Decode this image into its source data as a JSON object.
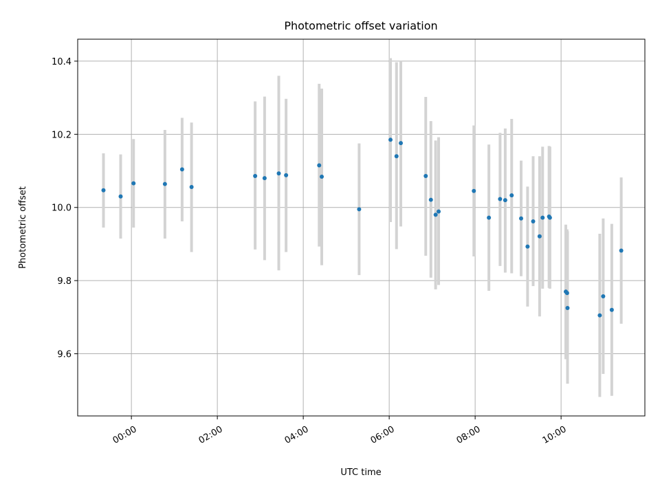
{
  "chart_data": {
    "type": "scatter",
    "title": "Photometric offset variation",
    "xlabel": "UTC time",
    "ylabel": "Photometric offset",
    "x_unit": "hours",
    "xlim": [
      -1.25,
      11.95
    ],
    "ylim": [
      9.43,
      10.46
    ],
    "xticks": [
      {
        "value": 0,
        "label": "00:00"
      },
      {
        "value": 2,
        "label": "02:00"
      },
      {
        "value": 4,
        "label": "04:00"
      },
      {
        "value": 6,
        "label": "06:00"
      },
      {
        "value": 8,
        "label": "08:00"
      },
      {
        "value": 10,
        "label": "10:00"
      }
    ],
    "yticks": [
      {
        "value": 9.6,
        "label": "9.6"
      },
      {
        "value": 9.8,
        "label": "9.8"
      },
      {
        "value": 10.0,
        "label": "10.0"
      },
      {
        "value": 10.2,
        "label": "10.2"
      },
      {
        "value": 10.4,
        "label": "10.4"
      }
    ],
    "grid": true,
    "marker_color": "#1f77b4",
    "errorbar_color": "#d3d3d3",
    "points": [
      {
        "x": -0.65,
        "y": 10.047,
        "lo": 9.945,
        "hi": 10.148
      },
      {
        "x": -0.25,
        "y": 10.03,
        "lo": 9.915,
        "hi": 10.145
      },
      {
        "x": 0.05,
        "y": 10.066,
        "lo": 9.945,
        "hi": 10.187
      },
      {
        "x": 0.78,
        "y": 10.064,
        "lo": 9.915,
        "hi": 10.212
      },
      {
        "x": 1.18,
        "y": 10.104,
        "lo": 9.962,
        "hi": 10.245
      },
      {
        "x": 1.4,
        "y": 10.056,
        "lo": 9.878,
        "hi": 10.232
      },
      {
        "x": 2.88,
        "y": 10.086,
        "lo": 9.885,
        "hi": 10.29
      },
      {
        "x": 3.1,
        "y": 10.08,
        "lo": 9.856,
        "hi": 10.303
      },
      {
        "x": 3.43,
        "y": 10.093,
        "lo": 9.828,
        "hi": 10.36
      },
      {
        "x": 3.6,
        "y": 10.088,
        "lo": 9.878,
        "hi": 10.297
      },
      {
        "x": 4.37,
        "y": 10.115,
        "lo": 9.893,
        "hi": 10.338
      },
      {
        "x": 4.43,
        "y": 10.084,
        "lo": 9.842,
        "hi": 10.325
      },
      {
        "x": 5.3,
        "y": 9.995,
        "lo": 9.815,
        "hi": 10.175
      },
      {
        "x": 6.03,
        "y": 10.185,
        "lo": 9.96,
        "hi": 10.408
      },
      {
        "x": 6.17,
        "y": 10.14,
        "lo": 9.886,
        "hi": 10.397
      },
      {
        "x": 6.27,
        "y": 10.176,
        "lo": 9.948,
        "hi": 10.4
      },
      {
        "x": 6.85,
        "y": 10.086,
        "lo": 9.868,
        "hi": 10.302
      },
      {
        "x": 6.97,
        "y": 10.021,
        "lo": 9.808,
        "hi": 10.236
      },
      {
        "x": 7.08,
        "y": 9.98,
        "lo": 9.776,
        "hi": 10.183
      },
      {
        "x": 7.15,
        "y": 9.989,
        "lo": 9.788,
        "hi": 10.192
      },
      {
        "x": 7.97,
        "y": 10.045,
        "lo": 9.866,
        "hi": 10.224
      },
      {
        "x": 8.32,
        "y": 9.972,
        "lo": 9.772,
        "hi": 10.172
      },
      {
        "x": 8.58,
        "y": 10.023,
        "lo": 9.84,
        "hi": 10.204
      },
      {
        "x": 8.7,
        "y": 10.02,
        "lo": 9.822,
        "hi": 10.216
      },
      {
        "x": 8.85,
        "y": 10.033,
        "lo": 9.82,
        "hi": 10.242
      },
      {
        "x": 9.07,
        "y": 9.97,
        "lo": 9.812,
        "hi": 10.128
      },
      {
        "x": 9.22,
        "y": 9.893,
        "lo": 9.729,
        "hi": 10.057
      },
      {
        "x": 9.35,
        "y": 9.962,
        "lo": 9.785,
        "hi": 10.14
      },
      {
        "x": 9.5,
        "y": 9.921,
        "lo": 9.702,
        "hi": 10.14
      },
      {
        "x": 9.57,
        "y": 9.972,
        "lo": 9.778,
        "hi": 10.166
      },
      {
        "x": 9.72,
        "y": 9.975,
        "lo": 9.78,
        "hi": 10.168
      },
      {
        "x": 9.74,
        "y": 9.972,
        "lo": 9.778,
        "hi": 10.166
      },
      {
        "x": 10.11,
        "y": 9.77,
        "lo": 9.585,
        "hi": 9.953
      },
      {
        "x": 10.14,
        "y": 9.766,
        "lo": 9.59,
        "hi": 9.94
      },
      {
        "x": 10.15,
        "y": 9.725,
        "lo": 9.518,
        "hi": 9.935
      },
      {
        "x": 10.9,
        "y": 9.705,
        "lo": 9.482,
        "hi": 9.928
      },
      {
        "x": 10.98,
        "y": 9.757,
        "lo": 9.545,
        "hi": 9.97
      },
      {
        "x": 11.18,
        "y": 9.72,
        "lo": 9.485,
        "hi": 9.955
      },
      {
        "x": 11.4,
        "y": 9.882,
        "lo": 9.682,
        "hi": 10.082
      }
    ]
  }
}
